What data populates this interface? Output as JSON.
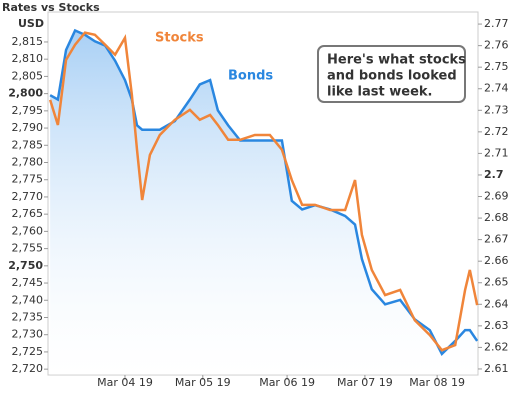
{
  "chart_data": {
    "type": "line",
    "title": "Rates vs Stocks",
    "y_label": "USD",
    "x": [
      0.5,
      2.3,
      4.2,
      6.3,
      8.6,
      10.9,
      13.3,
      15.6,
      17.9,
      19.5,
      20.7,
      21.9,
      23.7,
      26,
      29.5,
      33,
      35.3,
      37.7,
      39.5,
      41.9,
      44.7,
      48.1,
      51.6,
      54.4,
      56.7,
      59.1,
      62.1,
      65.6,
      69.1,
      71.4,
      73,
      75.3,
      78.4,
      81.9,
      85.3,
      88.8,
      91.6,
      94.7,
      97,
      98.1,
      99.8
    ],
    "xlim": [
      0,
      100
    ],
    "xticks": [
      {
        "value": 17.9,
        "label": "Mar 04 19"
      },
      {
        "value": 36,
        "label": "Mar 05 19"
      },
      {
        "value": 55.6,
        "label": "Mar 06 19"
      },
      {
        "value": 73.7,
        "label": "Mar 07 19"
      },
      {
        "value": 90.5,
        "label": "Mar 08 19"
      }
    ],
    "series": [
      {
        "name": "Stocks",
        "color": "#f0853a",
        "axis": "y",
        "values": [
          2798.2,
          2790.9,
          2809.8,
          2814.2,
          2817.7,
          2817.1,
          2814.2,
          2811.3,
          2816.2,
          2799.7,
          2783.7,
          2769.1,
          2782.2,
          2788.0,
          2792.4,
          2795.3,
          2792.4,
          2793.8,
          2790.9,
          2786.6,
          2786.6,
          2788.0,
          2788.0,
          2783.7,
          2774.9,
          2767.7,
          2767.7,
          2766.2,
          2766.2,
          2774.9,
          2759.0,
          2748.8,
          2741.5,
          2743.0,
          2734.2,
          2729.9,
          2725.5,
          2727.0,
          2743.0,
          2748.8,
          2738.6
        ]
      },
      {
        "name": "Bonds",
        "color": "#2a87e0",
        "axis": "y2",
        "values": [
          2.737,
          2.735,
          2.758,
          2.767,
          2.765,
          2.762,
          2.76,
          2.753,
          2.744,
          2.735,
          2.723,
          2.721,
          2.721,
          2.721,
          2.725,
          2.735,
          2.742,
          2.744,
          2.73,
          2.723,
          2.716,
          2.716,
          2.716,
          2.716,
          2.688,
          2.684,
          2.686,
          2.684,
          2.681,
          2.677,
          2.661,
          2.647,
          2.64,
          2.642,
          2.633,
          2.628,
          2.617,
          2.623,
          2.628,
          2.628,
          2.623
        ]
      }
    ],
    "ylim": [
      2718.3,
      2823.7
    ],
    "yticks": [
      {
        "value": 2720,
        "label": "2,720"
      },
      {
        "value": 2725,
        "label": "2,725"
      },
      {
        "value": 2730,
        "label": "2,730"
      },
      {
        "value": 2735,
        "label": "2,735"
      },
      {
        "value": 2740,
        "label": "2,740"
      },
      {
        "value": 2745,
        "label": "2,745"
      },
      {
        "value": 2750,
        "label": "2,750"
      },
      {
        "value": 2755,
        "label": "2,755"
      },
      {
        "value": 2760,
        "label": "2,760"
      },
      {
        "value": 2765,
        "label": "2,765"
      },
      {
        "value": 2770,
        "label": "2,770"
      },
      {
        "value": 2775,
        "label": "2,775"
      },
      {
        "value": 2780,
        "label": "2,780"
      },
      {
        "value": 2785,
        "label": "2,785"
      },
      {
        "value": 2790,
        "label": "2,790"
      },
      {
        "value": 2795,
        "label": "2,795"
      },
      {
        "value": 2800,
        "label": "2,800"
      },
      {
        "value": 2805,
        "label": "2,805"
      },
      {
        "value": 2810,
        "label": "2,810"
      },
      {
        "value": 2815,
        "label": "2,815"
      }
    ],
    "y2lim": [
      2.6072,
      2.7756
    ],
    "y2ticks": [
      2.61,
      2.62,
      2.63,
      2.64,
      2.65,
      2.66,
      2.67,
      2.68,
      2.69,
      2.7,
      2.71,
      2.72,
      2.73,
      2.74,
      2.75,
      2.76,
      2.77
    ],
    "annotation": [
      "Here's what stocks",
      "and bonds looked",
      "like last week."
    ]
  }
}
